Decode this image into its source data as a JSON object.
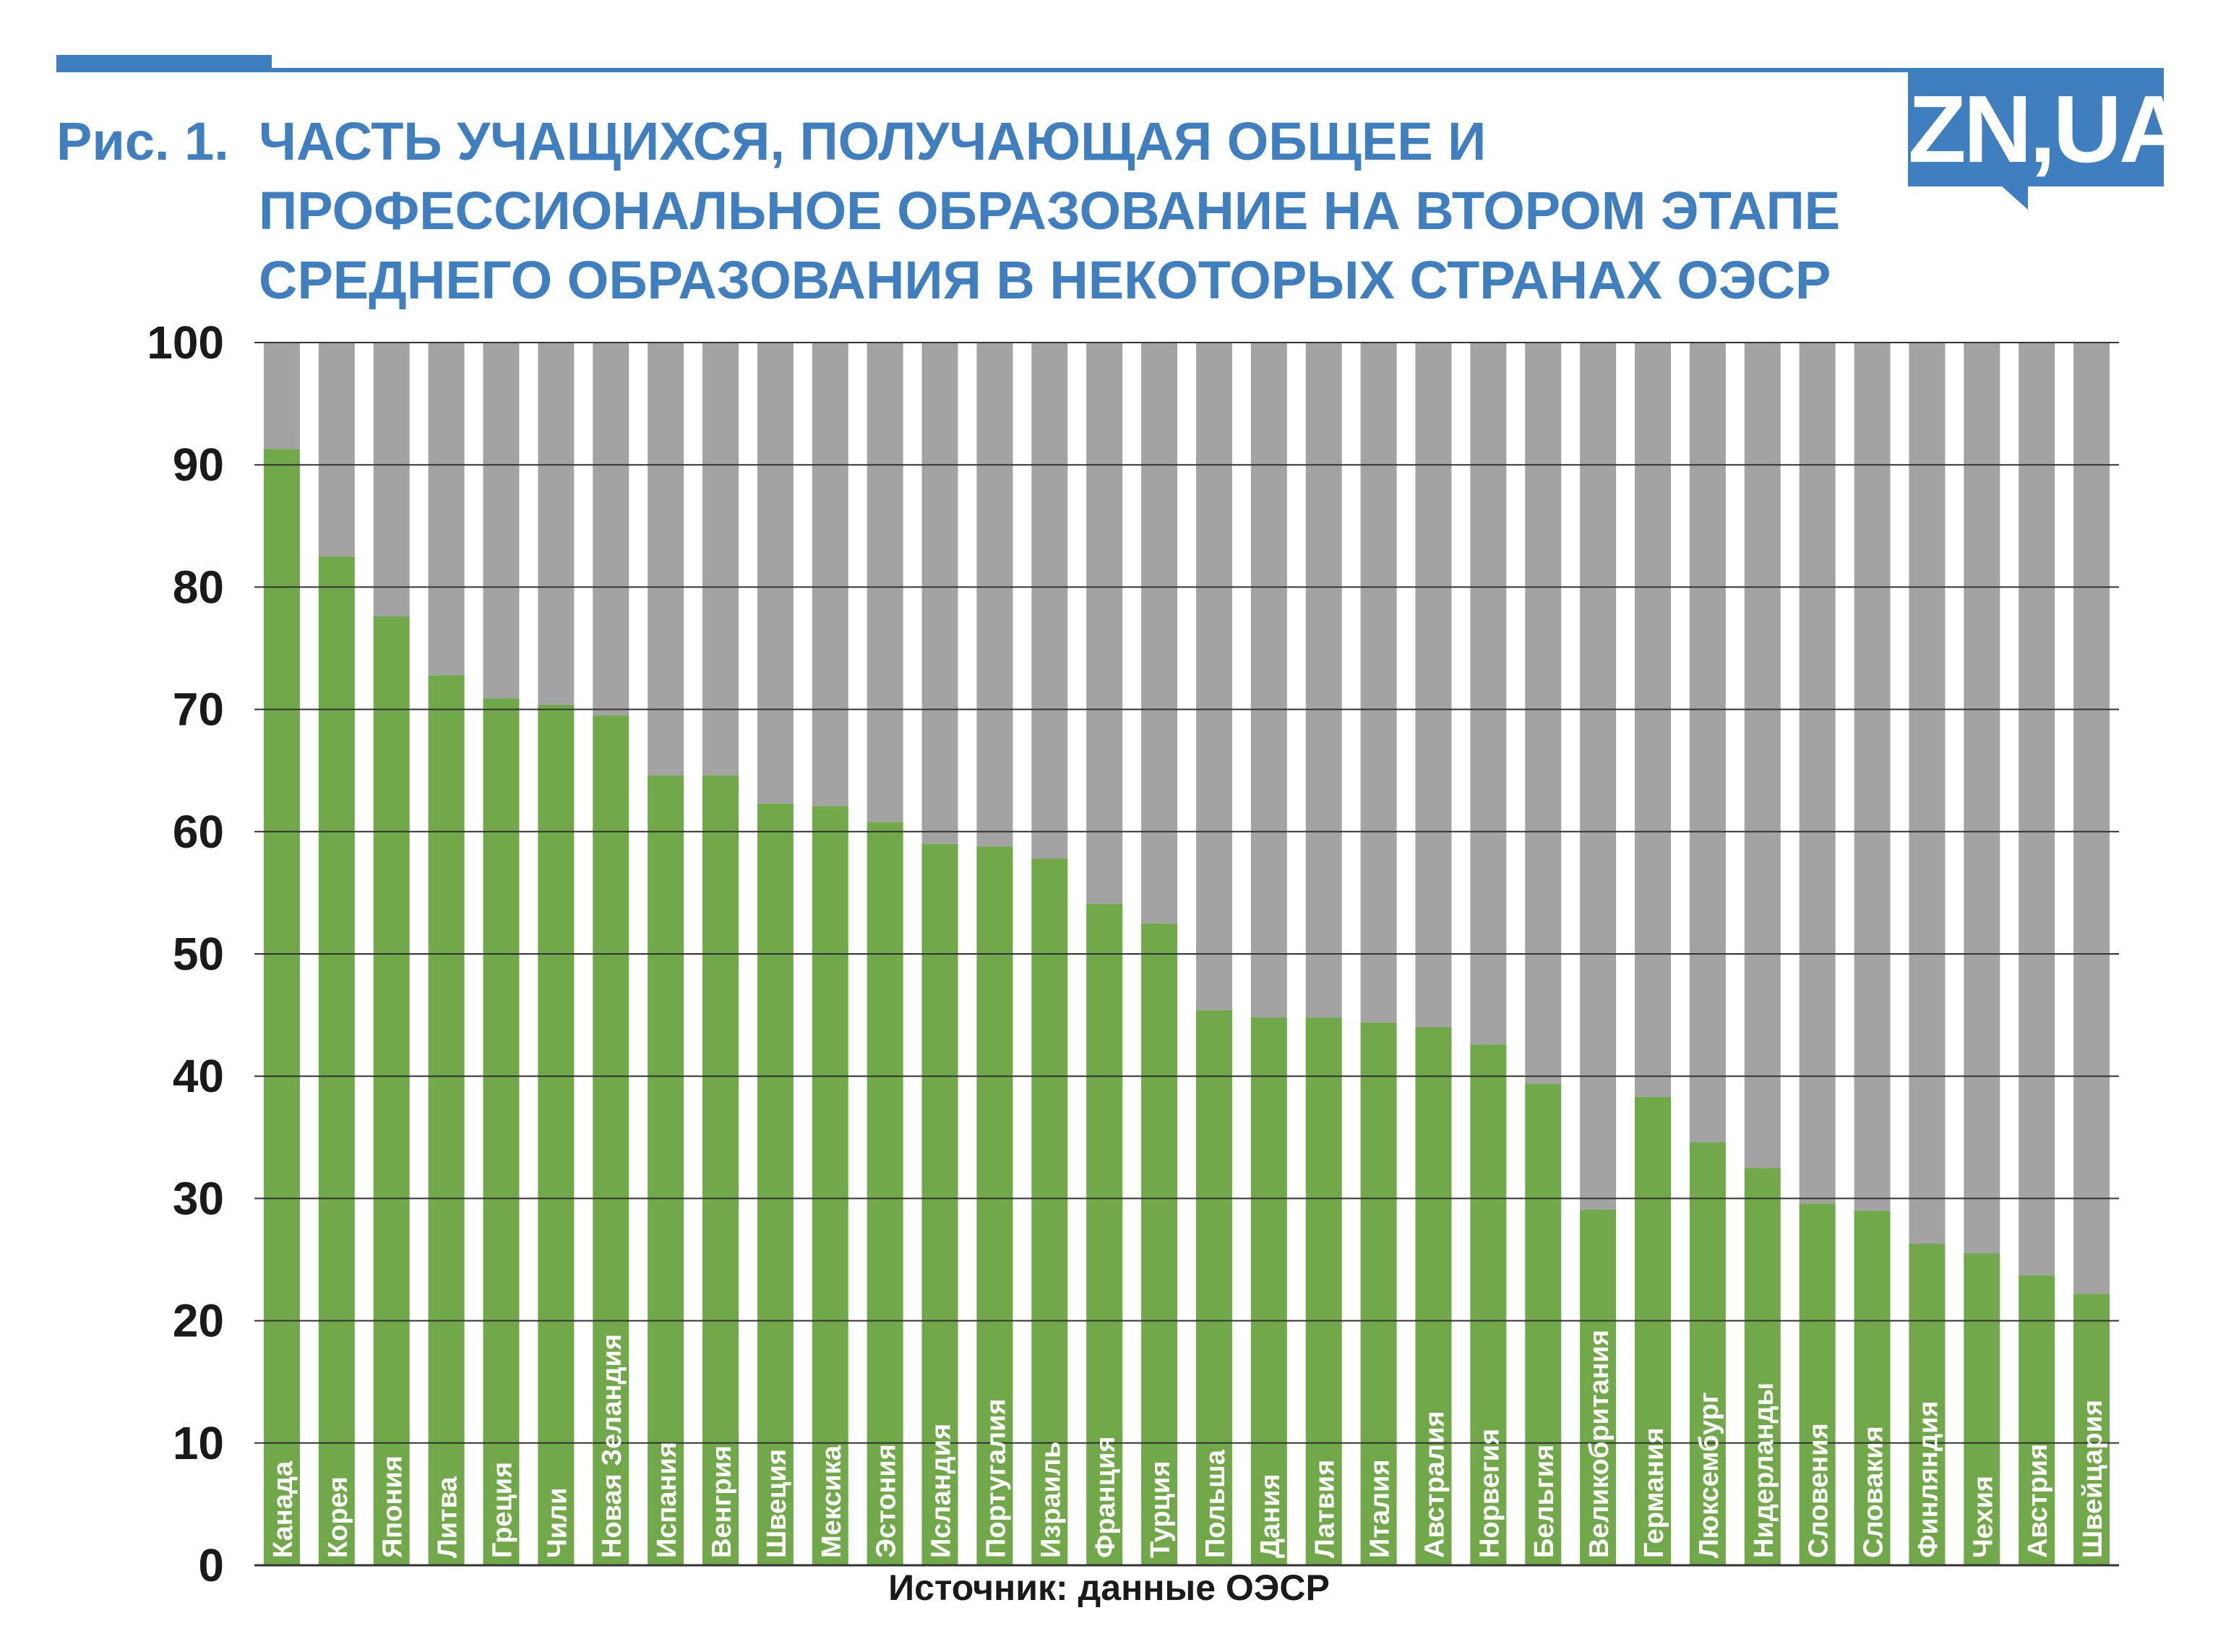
{
  "header": {
    "title_prefix": "Рис. 1.",
    "title_lines": [
      "ЧАСТЬ УЧАЩИХСЯ, ПОЛУЧАЮЩАЯ ОБЩЕЕ И",
      "ПРОФЕССИОНАЛЬНОЕ ОБРАЗОВАНИЕ НА ВТОРОМ ЭТАПЕ",
      "СРЕДНЕГО ОБРАЗОВАНИЯ В НЕКОТОРЫХ СТРАНАХ ОЭСР"
    ],
    "logo_text": "ZN,UA"
  },
  "colors": {
    "accent": "#3f7fbf",
    "bar_primary": "#70a84a",
    "bar_remainder": "#a3a3a3",
    "grid": "#333333",
    "axis_text": "#1a1a1a"
  },
  "chart_data": {
    "type": "bar",
    "stacked": true,
    "categories": [
      "Канада",
      "Корея",
      "Япония",
      "Литва",
      "Греция",
      "Чили",
      "Новая Зеландия",
      "Испания",
      "Венгрия",
      "Швеция",
      "Мексика",
      "Эстония",
      "Исландия",
      "Португалия",
      "Израиль",
      "Франция",
      "Турция",
      "Польша",
      "Дания",
      "Латвия",
      "Италия",
      "Австралия",
      "Норвегия",
      "Бельгия",
      "Великобритания",
      "Германия",
      "Люксембург",
      "Нидерланды",
      "Словения",
      "Словакия",
      "Финляндия",
      "Чехия",
      "Австрия",
      "Швейцария"
    ],
    "series": [
      {
        "values": [
          91.3,
          82.5,
          77.6,
          72.8,
          70.9,
          70.4,
          69.5,
          64.6,
          64.6,
          62.3,
          62.1,
          60.8,
          59.0,
          58.8,
          57.8,
          54.1,
          52.5,
          45.4,
          44.8,
          44.8,
          44.4,
          44.0,
          42.6,
          39.4,
          29.1,
          38.3,
          34.6,
          32.5,
          29.6,
          29.0,
          26.3,
          25.5,
          23.7,
          22.2
        ]
      },
      {
        "values": [
          8.7,
          17.5,
          22.4,
          27.2,
          29.1,
          29.6,
          30.5,
          35.4,
          35.4,
          37.7,
          37.9,
          39.2,
          41.0,
          41.2,
          42.2,
          45.9,
          47.5,
          54.6,
          55.2,
          55.2,
          55.6,
          56.0,
          57.4,
          60.6,
          70.9,
          61.7,
          65.4,
          67.5,
          70.4,
          71.0,
          73.7,
          74.5,
          76.3,
          77.8
        ]
      }
    ],
    "ylim": [
      0,
      100
    ],
    "yticks": [
      "0",
      "10",
      "20",
      "30",
      "40",
      "50",
      "60",
      "70",
      "80",
      "90",
      "100"
    ],
    "grid": true,
    "xlabel": "",
    "ylabel": ""
  },
  "footer": {
    "source": "Источник: данные ОЭСР"
  }
}
